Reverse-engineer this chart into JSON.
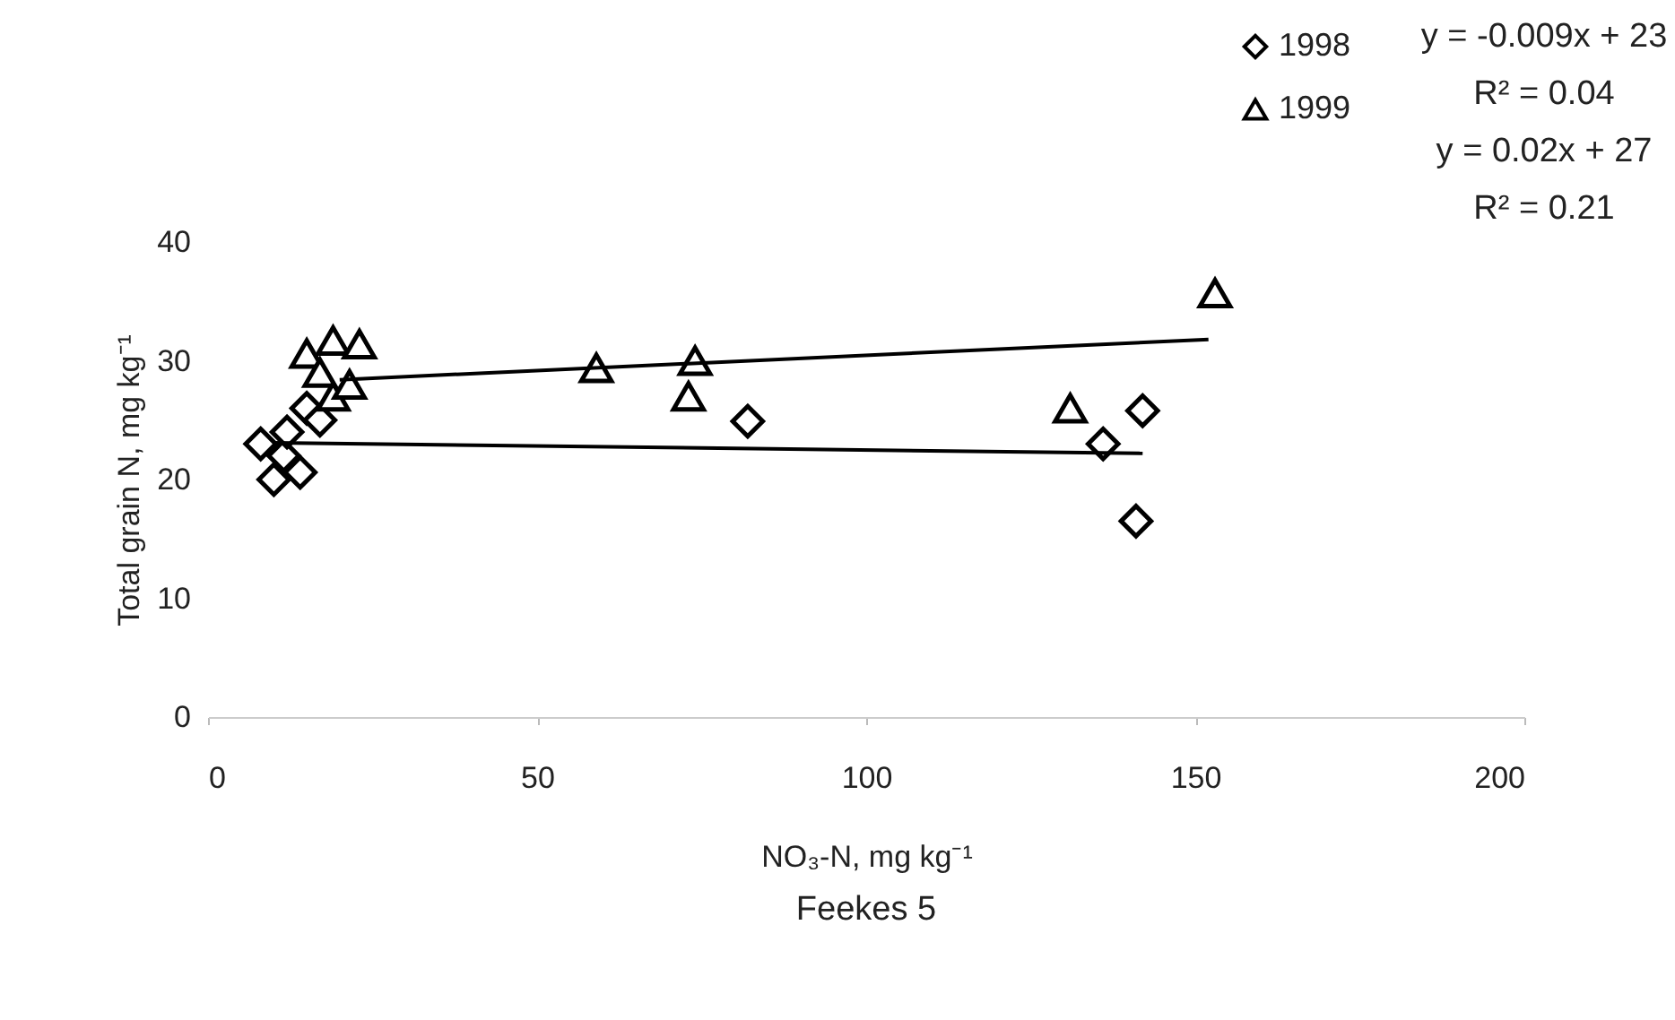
{
  "chart_data": {
    "type": "scatter",
    "xlabel": "NO₃-N, mg kg⁻¹",
    "ylabel": "Total grain N, mg kg⁻¹",
    "xlim": [
      0,
      200
    ],
    "xticks": [
      0,
      50,
      100,
      150,
      200
    ],
    "ylim": [
      0,
      40
    ],
    "yticks": [
      0,
      10,
      20,
      30,
      40
    ],
    "grid": false,
    "legend": "top right",
    "annotations": [
      "y = -0.009x + 23",
      "R² = 0.04",
      "y = 0.02x + 27",
      "R² = 0.21",
      "Feekes 5"
    ],
    "series": [
      {
        "name": "1998",
        "color": "#000000",
        "marker": "diamond",
        "x": [
          8,
          10,
          11.5,
          12,
          14,
          15,
          17,
          82,
          136,
          142,
          141
        ],
        "values": [
          23,
          20,
          22,
          24,
          20.6,
          26,
          25,
          24.9,
          23,
          25.8,
          16.5
        ]
      },
      {
        "name": "1999",
        "color": "#000000",
        "marker": "triangle",
        "x": [
          15,
          17,
          19,
          19,
          21.5,
          23,
          59,
          73,
          74,
          131,
          153
        ],
        "values": [
          30.6,
          29,
          31.7,
          27,
          28,
          31.4,
          29.4,
          27,
          30,
          26,
          35.7
        ]
      },
      {
        "type": "line",
        "color": "#000000",
        "x": [
          10,
          142
        ],
        "values": [
          23.1,
          22.2
        ]
      },
      {
        "type": "line",
        "color": "#000000",
        "x": [
          20,
          152
        ],
        "values": [
          28.4,
          31.8
        ]
      }
    ]
  }
}
